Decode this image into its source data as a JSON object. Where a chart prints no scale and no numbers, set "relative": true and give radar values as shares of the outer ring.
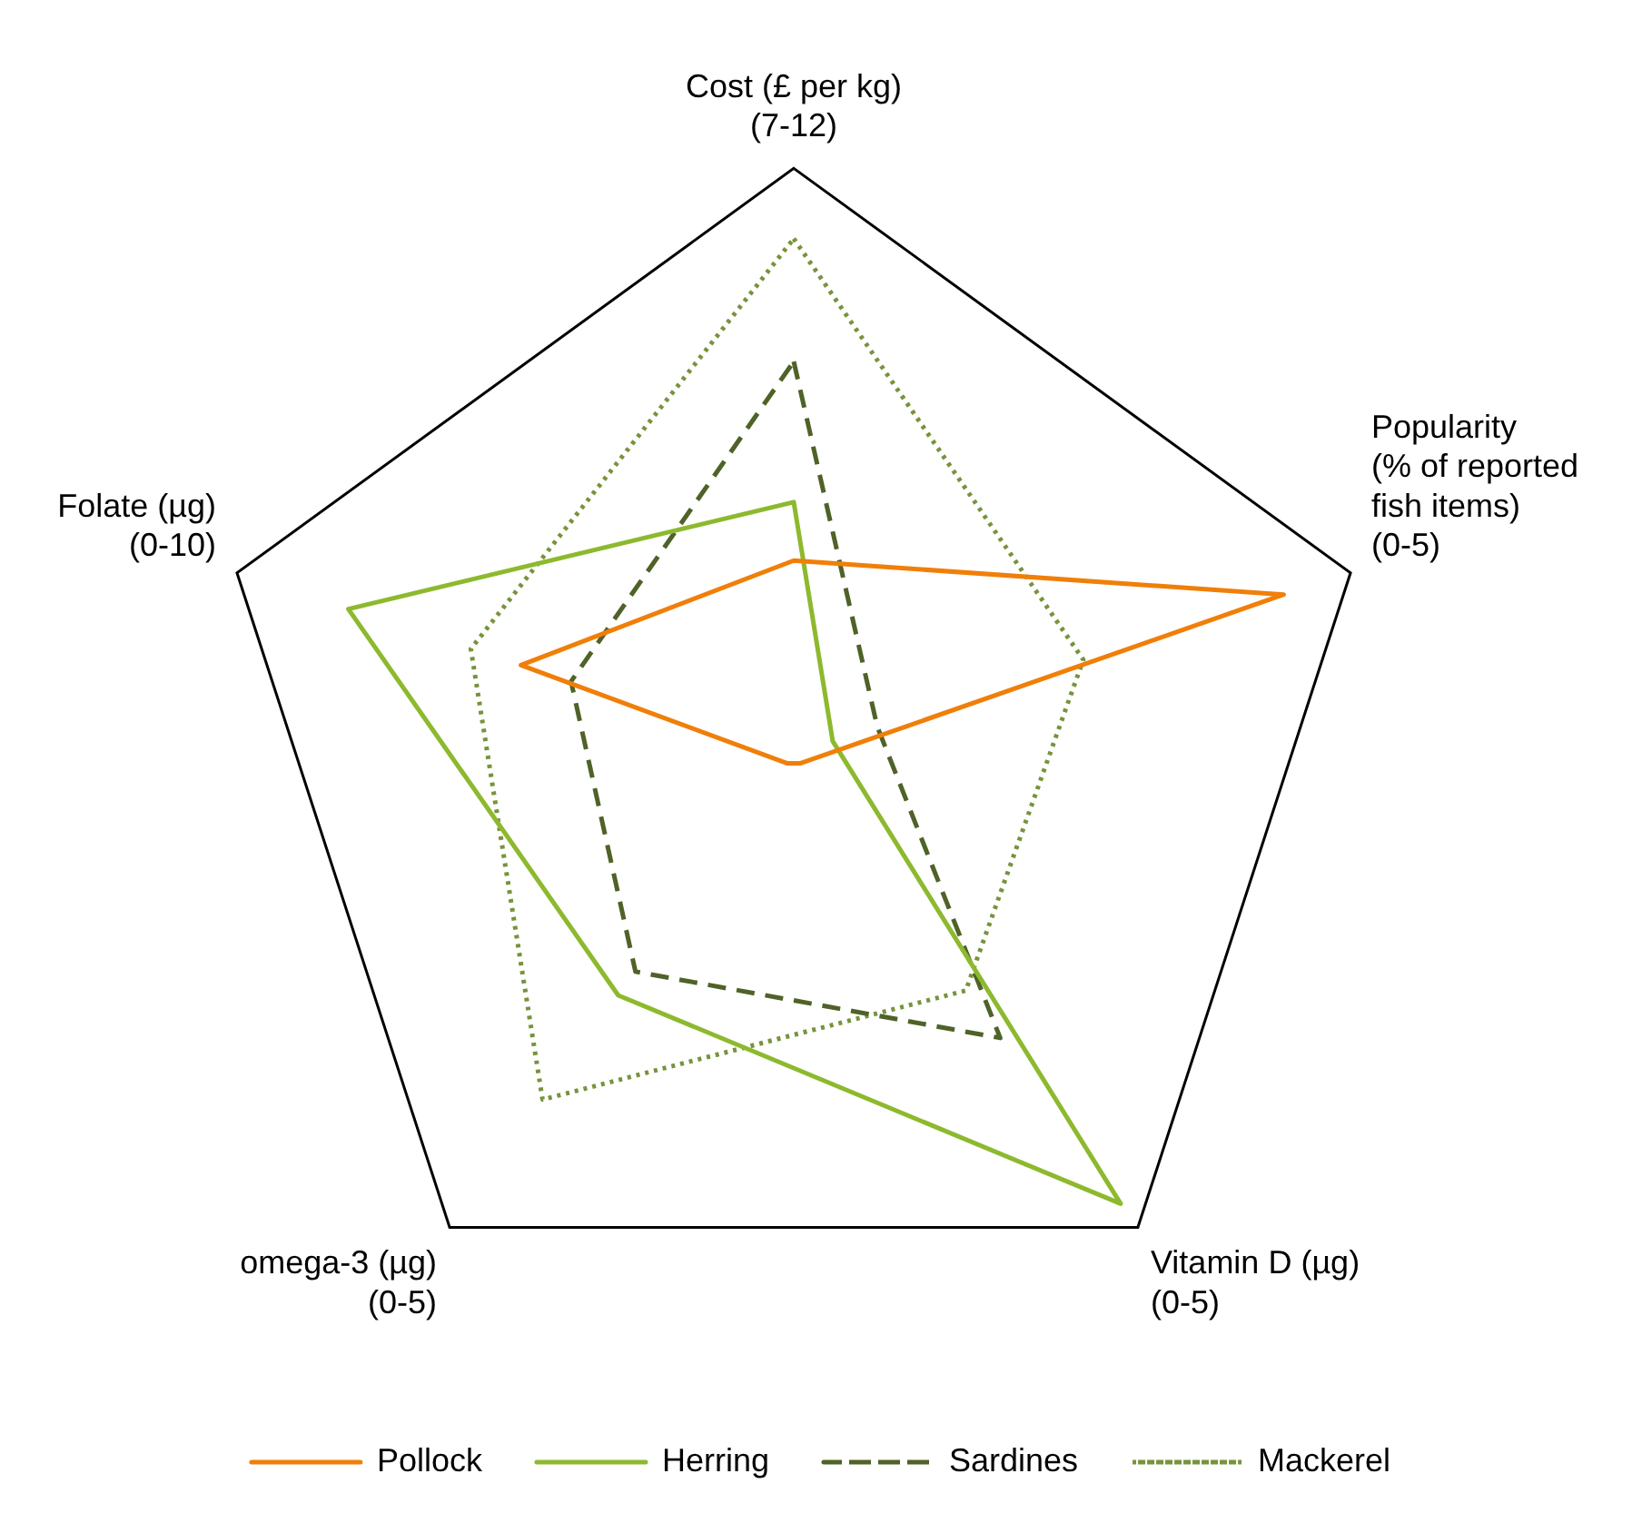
{
  "chart_data": {
    "type": "radar",
    "relative": true,
    "categories": [
      "Cost (£ per kg)\n(7-12)",
      "Popularity\n(% of reported\nfish items)\n(0-5)",
      "Vitamin D (µg)\n(0-5)",
      "omega-3 (µg)\n(0-5)",
      "Folate (µg)\n(0-10)"
    ],
    "series": [
      {
        "name": "Pollock",
        "color": "#f07f09",
        "line_style": "solid",
        "values": [
          0.33,
          0.88,
          0.02,
          0.02,
          0.49
        ]
      },
      {
        "name": "Herring",
        "color": "#8db92e",
        "line_style": "solid",
        "values": [
          0.43,
          0.07,
          0.95,
          0.51,
          0.8
        ]
      },
      {
        "name": "Sardines",
        "color": "#4f6228",
        "line_style": "dashed",
        "values": [
          0.67,
          0.15,
          0.6,
          0.46,
          0.4
        ]
      },
      {
        "name": "Mackerel",
        "color": "#77933c",
        "line_style": "dotted",
        "values": [
          0.88,
          0.52,
          0.5,
          0.73,
          0.58
        ]
      }
    ],
    "grid": true,
    "legend": "bottom",
    "marker": "none"
  }
}
